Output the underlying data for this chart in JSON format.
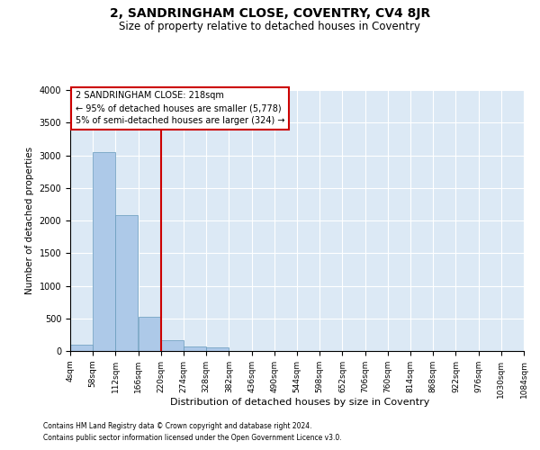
{
  "title": "2, SANDRINGHAM CLOSE, COVENTRY, CV4 8JR",
  "subtitle": "Size of property relative to detached houses in Coventry",
  "xlabel": "Distribution of detached houses by size in Coventry",
  "ylabel": "Number of detached properties",
  "footnote1": "Contains HM Land Registry data © Crown copyright and database right 2024.",
  "footnote2": "Contains public sector information licensed under the Open Government Licence v3.0.",
  "bar_color": "#adc9e8",
  "bar_edge_color": "#6699bb",
  "bg_color": "#dce9f5",
  "grid_color": "#ffffff",
  "vline_color": "#cc0000",
  "vline_x": 220,
  "annotation_text": "2 SANDRINGHAM CLOSE: 218sqm\n← 95% of detached houses are smaller (5,778)\n5% of semi-detached houses are larger (324) →",
  "annotation_box_edge": "#cc0000",
  "bins": [
    4,
    58,
    112,
    166,
    220,
    274,
    328,
    382,
    436,
    490,
    544,
    598,
    652,
    706,
    760,
    814,
    868,
    922,
    976,
    1030,
    1084
  ],
  "bar_heights": [
    100,
    3050,
    2080,
    530,
    170,
    65,
    55,
    0,
    0,
    0,
    0,
    0,
    0,
    0,
    0,
    0,
    0,
    0,
    0,
    0
  ],
  "ylim": [
    0,
    4000
  ],
  "yticks": [
    0,
    500,
    1000,
    1500,
    2000,
    2500,
    3000,
    3500,
    4000
  ],
  "title_fontsize": 10,
  "subtitle_fontsize": 8.5,
  "ylabel_fontsize": 7.5,
  "xlabel_fontsize": 8,
  "tick_fontsize": 6.5,
  "annotation_fontsize": 7,
  "footnote_fontsize": 5.5
}
